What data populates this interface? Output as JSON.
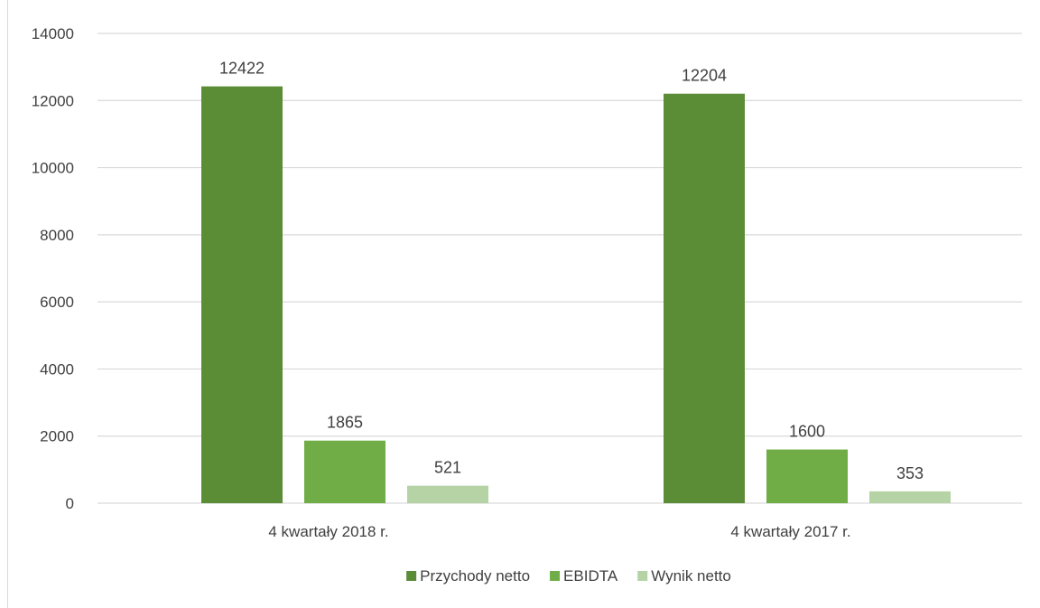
{
  "chart_data": {
    "type": "bar",
    "categories": [
      "4 kwartały 2018 r.",
      "4 kwartały 2017 r."
    ],
    "series": [
      {
        "name": "Przychody netto",
        "values": [
          12422,
          12204
        ],
        "color": "#5b8c36"
      },
      {
        "name": "EBIDTA",
        "values": [
          1865,
          1600
        ],
        "color": "#70ad47"
      },
      {
        "name": "Wynik netto",
        "values": [
          521,
          353
        ],
        "color": "#b6d3a6"
      }
    ],
    "ylim": [
      0,
      14000
    ],
    "yticks": [
      0,
      2000,
      4000,
      6000,
      8000,
      10000,
      12000,
      14000
    ],
    "grid": true,
    "legend_position": "bottom",
    "data_labels": true,
    "axis_color": "#d9d9d9",
    "grid_color": "#d9d9d9",
    "text_color": "#404040"
  }
}
